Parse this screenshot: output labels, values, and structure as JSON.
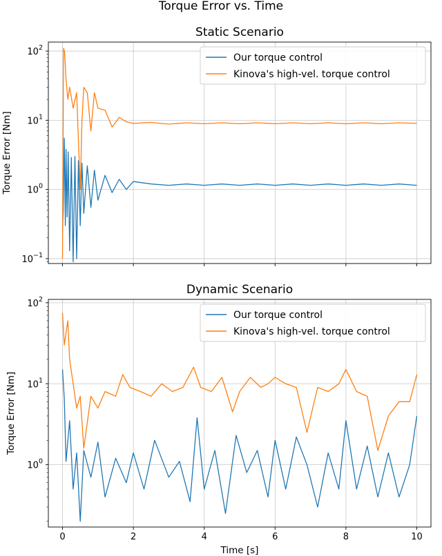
{
  "suptitle": "Torque Error vs. Time",
  "colors": {
    "series1": "#1f77b4",
    "series2": "#ff7f0e",
    "grid": "#b0b0b0"
  },
  "chart_data": [
    {
      "type": "line",
      "title": "Static Scenario",
      "xlabel": "",
      "ylabel": "Torque Error [Nm]",
      "xlim": [
        -0.4,
        10.4
      ],
      "ylim": [
        0.085,
        135
      ],
      "yscale": "log",
      "yticks": [
        {
          "value": 0.1,
          "base": "10",
          "exp": "−1"
        },
        {
          "value": 1,
          "base": "10",
          "exp": "0"
        },
        {
          "value": 10,
          "base": "10",
          "exp": "1"
        },
        {
          "value": 100,
          "base": "10",
          "exp": "2"
        }
      ],
      "xticks": [
        0,
        2,
        4,
        6,
        8,
        10
      ],
      "show_xticklabels": false,
      "grid": true,
      "legend": "top-right",
      "series": [
        {
          "name": "Our torque control",
          "color": "#1f77b4",
          "x": [
            0,
            0.02,
            0.05,
            0.08,
            0.1,
            0.13,
            0.16,
            0.2,
            0.25,
            0.3,
            0.35,
            0.4,
            0.45,
            0.5,
            0.55,
            0.6,
            0.7,
            0.8,
            0.9,
            1.0,
            1.2,
            1.4,
            1.6,
            1.8,
            2.0,
            2.5,
            3,
            3.5,
            4,
            4.5,
            5,
            5.5,
            6,
            6.5,
            7,
            7.5,
            8,
            8.5,
            9,
            9.5,
            10
          ],
          "y": [
            0.25,
            0.5,
            5.5,
            0.3,
            3.8,
            0.4,
            3.5,
            0.13,
            2.9,
            0.09,
            3.0,
            0.1,
            2.6,
            0.3,
            2.4,
            0.45,
            2.2,
            0.55,
            1.9,
            0.7,
            1.6,
            0.9,
            1.4,
            1.0,
            1.3,
            1.2,
            1.15,
            1.2,
            1.15,
            1.2,
            1.15,
            1.2,
            1.15,
            1.2,
            1.15,
            1.2,
            1.15,
            1.2,
            1.15,
            1.2,
            1.15
          ]
        },
        {
          "name": "Kinova's high-vel. torque control",
          "color": "#ff7f0e",
          "x": [
            0,
            0.03,
            0.06,
            0.1,
            0.15,
            0.2,
            0.3,
            0.4,
            0.5,
            0.55,
            0.6,
            0.7,
            0.8,
            0.9,
            1.0,
            1.2,
            1.4,
            1.6,
            1.8,
            2.0,
            2.5,
            3,
            3.5,
            4,
            4.5,
            5,
            5.5,
            6,
            6.5,
            7,
            7.5,
            8,
            8.5,
            9,
            9.5,
            10
          ],
          "y": [
            0.1,
            110,
            95,
            40,
            20,
            30,
            15,
            25,
            1.0,
            10,
            30,
            25,
            7,
            25,
            15,
            14,
            8,
            11,
            9.5,
            9.0,
            9.3,
            8.8,
            9.2,
            8.9,
            9.2,
            8.9,
            9.2,
            8.9,
            9.2,
            8.9,
            9.2,
            8.9,
            9.2,
            8.9,
            9.2,
            9.0
          ]
        }
      ]
    },
    {
      "type": "line",
      "title": "Dynamic Scenario",
      "xlabel": "Time [s]",
      "ylabel": "Torque Error [Nm]",
      "xlim": [
        -0.4,
        10.4
      ],
      "ylim": [
        0.17,
        110
      ],
      "yscale": "log",
      "yticks": [
        {
          "value": 1,
          "base": "10",
          "exp": "0"
        },
        {
          "value": 10,
          "base": "10",
          "exp": "1"
        },
        {
          "value": 100,
          "base": "10",
          "exp": "2"
        }
      ],
      "xticks": [
        0,
        2,
        4,
        6,
        8,
        10
      ],
      "show_xticklabels": true,
      "grid": true,
      "legend": "top-right",
      "series": [
        {
          "name": "Our torque control",
          "color": "#1f77b4",
          "x": [
            0,
            0.05,
            0.1,
            0.2,
            0.3,
            0.4,
            0.5,
            0.6,
            0.8,
            1.0,
            1.2,
            1.5,
            1.8,
            2.0,
            2.3,
            2.6,
            3.0,
            3.3,
            3.6,
            3.8,
            4.0,
            4.3,
            4.6,
            4.9,
            5.2,
            5.5,
            5.8,
            6.0,
            6.3,
            6.6,
            6.9,
            7.2,
            7.5,
            7.8,
            8.0,
            8.3,
            8.6,
            8.9,
            9.2,
            9.5,
            9.8,
            10
          ],
          "y": [
            15,
            6.5,
            1.1,
            3.5,
            0.5,
            1.4,
            0.2,
            1.5,
            0.7,
            1.9,
            0.4,
            1.2,
            0.6,
            1.4,
            0.5,
            2.0,
            0.7,
            1.1,
            0.35,
            3.8,
            0.5,
            1.5,
            0.25,
            2.3,
            0.8,
            1.5,
            0.4,
            2.0,
            0.5,
            2.2,
            1.0,
            0.3,
            1.4,
            0.5,
            3.5,
            0.5,
            1.7,
            0.4,
            1.4,
            0.4,
            1.0,
            4.0
          ]
        },
        {
          "name": "Kinova's high-vel. torque control",
          "color": "#ff7f0e",
          "x": [
            0,
            0.05,
            0.15,
            0.2,
            0.3,
            0.4,
            0.5,
            0.6,
            0.8,
            1.0,
            1.2,
            1.5,
            1.7,
            1.9,
            2.2,
            2.5,
            2.8,
            3.1,
            3.4,
            3.7,
            3.9,
            4.2,
            4.5,
            4.8,
            5.0,
            5.3,
            5.6,
            5.8,
            6.0,
            6.3,
            6.6,
            6.9,
            7.2,
            7.5,
            7.8,
            8.0,
            8.3,
            8.6,
            8.9,
            9.2,
            9.5,
            9.8,
            10
          ],
          "y": [
            75,
            30,
            60,
            20,
            10,
            5,
            7,
            1.6,
            7,
            5,
            8,
            7,
            13,
            9,
            8,
            7,
            10,
            8,
            9,
            16,
            9,
            8,
            12,
            4.5,
            8,
            12,
            9,
            10,
            12,
            10,
            9,
            2.5,
            9,
            8,
            10,
            15,
            8,
            7,
            1.5,
            4,
            6,
            6,
            13
          ]
        }
      ]
    }
  ]
}
